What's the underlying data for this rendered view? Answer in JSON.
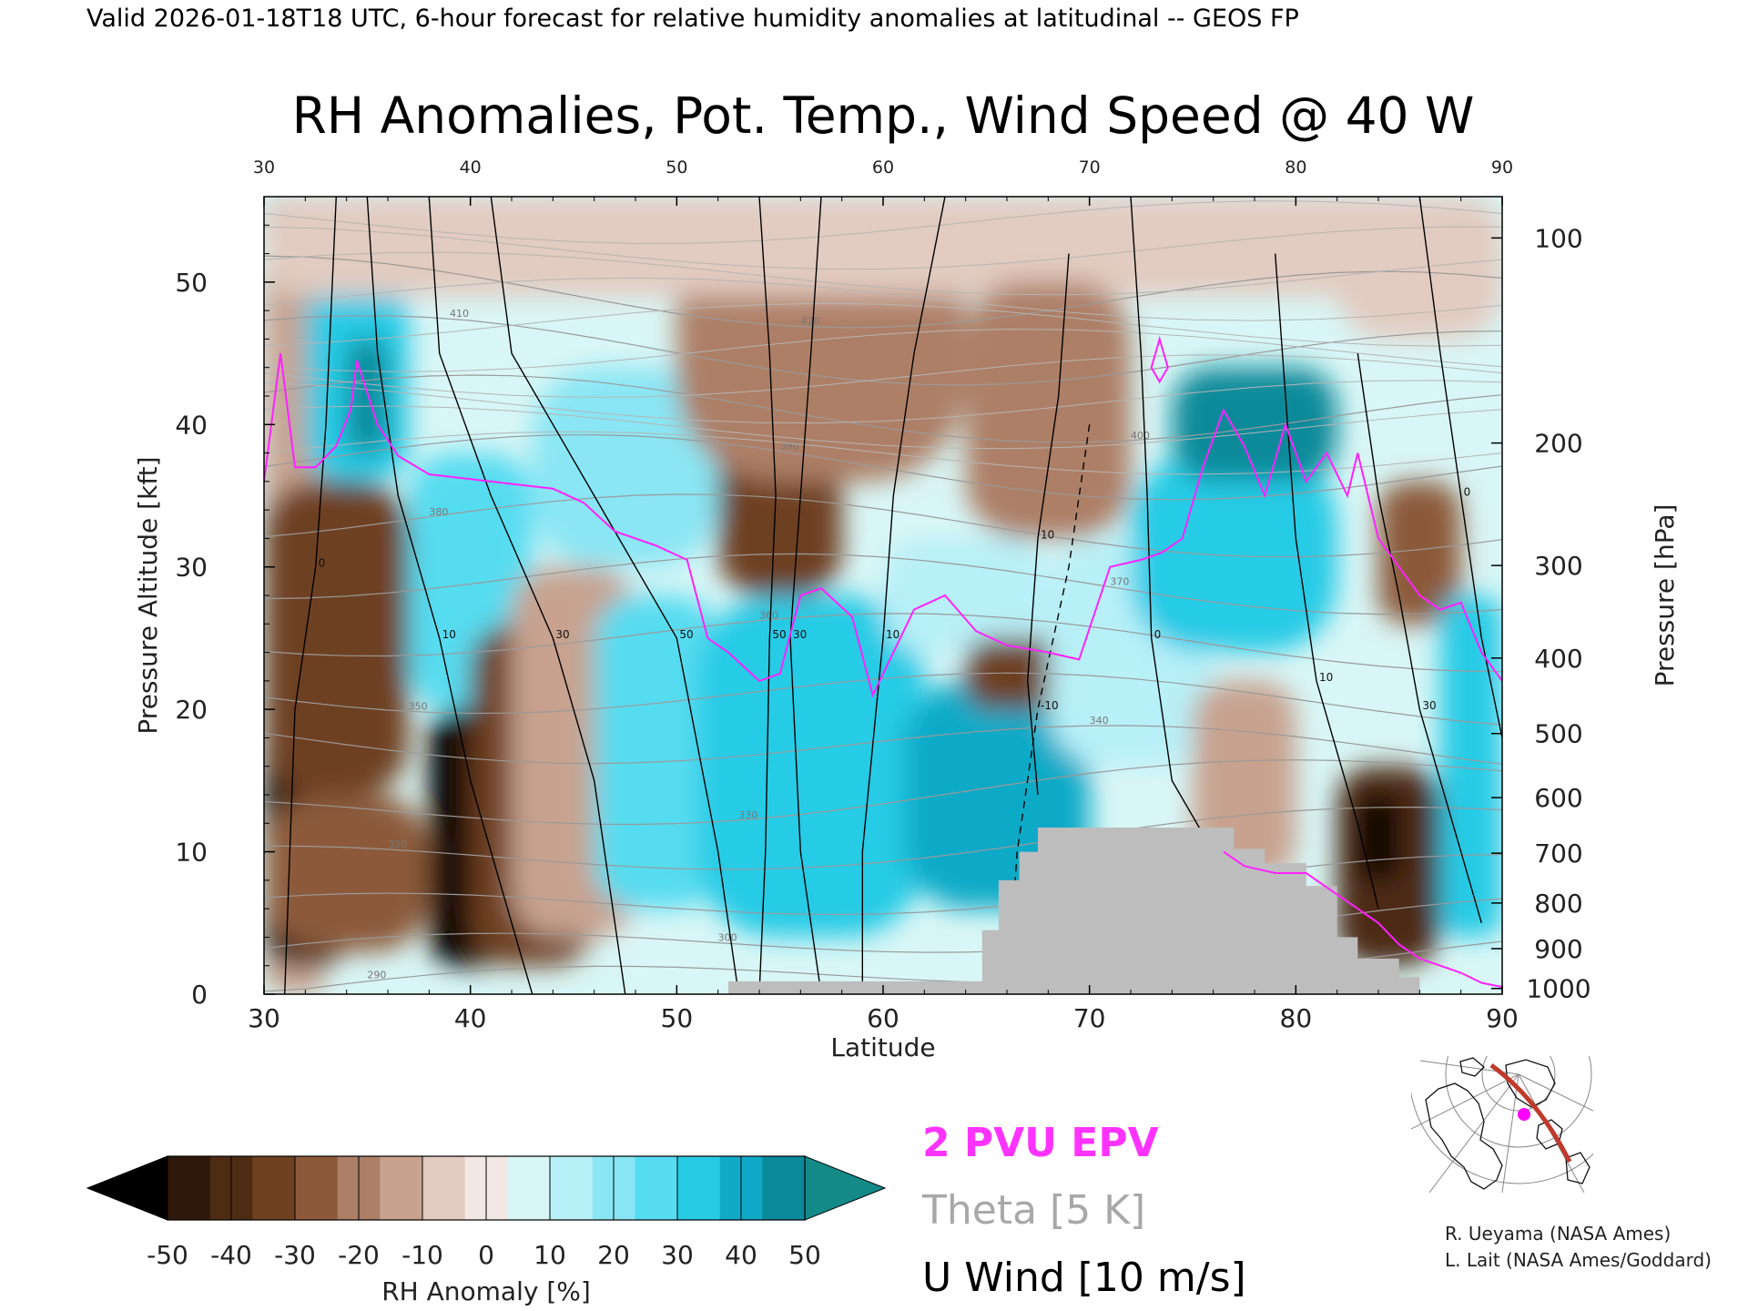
{
  "header": {
    "valid_line": "Valid 2026-01-18T18 UTC, 6-hour forecast for relative humidity anomalies at latitudinal -- GEOS FP"
  },
  "chart_data": {
    "type": "heatmap",
    "title": "RH Anomalies, Pot. Temp., Wind Speed @ 40 W",
    "xlabel": "Latitude",
    "ylabel": "Pressure Altitude [kft]",
    "ylabel_right": "Pressure [hPa]",
    "xlim": [
      30,
      90
    ],
    "ylim": [
      0,
      56
    ],
    "x_ticks": [
      "30",
      "40",
      "50",
      "60",
      "70",
      "80",
      "90"
    ],
    "y_ticks": [
      "0",
      "10",
      "20",
      "30",
      "40",
      "50"
    ],
    "pressure_ticks": [
      {
        "label": "100",
        "kft": 53.1
      },
      {
        "label": "200",
        "kft": 38.7
      },
      {
        "label": "300",
        "kft": 30.1
      },
      {
        "label": "400",
        "kft": 23.6
      },
      {
        "label": "500",
        "kft": 18.3
      },
      {
        "label": "600",
        "kft": 13.8
      },
      {
        "label": "700",
        "kft": 9.9
      },
      {
        "label": "800",
        "kft": 6.4
      },
      {
        "label": "900",
        "kft": 3.2
      },
      {
        "label": "1000",
        "kft": 0.4
      }
    ],
    "colorbar": {
      "label": "RH Anomaly [%]",
      "ticks": [
        "-50",
        "-40",
        "-30",
        "-20",
        "-10",
        "0",
        "10",
        "20",
        "30",
        "40",
        "50"
      ],
      "colors": [
        "#000000",
        "#2e180a",
        "#4e2c13",
        "#6e4020",
        "#8c5a3a",
        "#ad7f66",
        "#c8a28f",
        "#e2cbc0",
        "#f2e7e2",
        "#d8f6f6",
        "#b8f0f8",
        "#8ae6f4",
        "#56dcf0",
        "#28cbe6",
        "#10aac8",
        "#0a8a9a",
        "#138a88"
      ]
    },
    "anomaly_regions": [
      {
        "x": [
          30,
          33
        ],
        "y": [
          0,
          56
        ],
        "value": -12
      },
      {
        "x": [
          30,
          34
        ],
        "y": [
          2,
          20
        ],
        "value": -50
      },
      {
        "x": [
          30,
          37
        ],
        "y": [
          14,
          36
        ],
        "value": -35
      },
      {
        "x": [
          30,
          38
        ],
        "y": [
          3,
          14
        ],
        "value": -30
      },
      {
        "x": [
          32,
          37
        ],
        "y": [
          36,
          50
        ],
        "value": 30
      },
      {
        "x": [
          34,
          36
        ],
        "y": [
          38,
          46
        ],
        "value": 45
      },
      {
        "x": [
          37,
          43
        ],
        "y": [
          20,
          38
        ],
        "value": 25
      },
      {
        "x": [
          38,
          42
        ],
        "y": [
          2,
          20
        ],
        "value": -50
      },
      {
        "x": [
          40,
          46
        ],
        "y": [
          2,
          26
        ],
        "value": -35
      },
      {
        "x": [
          42,
          48
        ],
        "y": [
          4,
          30
        ],
        "value": -15
      },
      {
        "x": [
          43,
          52
        ],
        "y": [
          30,
          44
        ],
        "value": 20
      },
      {
        "x": [
          46,
          52
        ],
        "y": [
          6,
          28
        ],
        "value": 25
      },
      {
        "x": [
          51,
          62
        ],
        "y": [
          4,
          28
        ],
        "value": 35
      },
      {
        "x": [
          52,
          58
        ],
        "y": [
          28,
          42
        ],
        "value": -35
      },
      {
        "x": [
          50,
          64
        ],
        "y": [
          36,
          56
        ],
        "value": -18
      },
      {
        "x": [
          30,
          90
        ],
        "y": [
          49,
          56
        ],
        "value": -8
      },
      {
        "x": [
          60,
          68
        ],
        "y": [
          24,
          32
        ],
        "value": 15
      },
      {
        "x": [
          61,
          70
        ],
        "y": [
          6,
          22
        ],
        "value": 40
      },
      {
        "x": [
          64,
          69
        ],
        "y": [
          20,
          25
        ],
        "value": -35
      },
      {
        "x": [
          64,
          72
        ],
        "y": [
          32,
          50
        ],
        "value": -20
      },
      {
        "x": [
          68,
          76
        ],
        "y": [
          16,
          32
        ],
        "value": 15
      },
      {
        "x": [
          72,
          82
        ],
        "y": [
          24,
          38
        ],
        "value": 30
      },
      {
        "x": [
          74,
          82
        ],
        "y": [
          36,
          44
        ],
        "value": 45
      },
      {
        "x": [
          75,
          80
        ],
        "y": [
          8,
          22
        ],
        "value": -12
      },
      {
        "x": [
          82,
          87
        ],
        "y": [
          2,
          16
        ],
        "value": -40
      },
      {
        "x": [
          83,
          85
        ],
        "y": [
          8,
          14
        ],
        "value": -50
      },
      {
        "x": [
          84,
          88
        ],
        "y": [
          26,
          36
        ],
        "value": -30
      },
      {
        "x": [
          87,
          90
        ],
        "y": [
          4,
          28
        ],
        "value": 30
      },
      {
        "x": [
          82,
          90
        ],
        "y": [
          46,
          56
        ],
        "value": -6
      }
    ],
    "epv_2pvu": [
      [
        30,
        36
      ],
      [
        30.8,
        45
      ],
      [
        31.5,
        37
      ],
      [
        32.5,
        37
      ],
      [
        33.5,
        38.5
      ],
      [
        34.2,
        41
      ],
      [
        34.5,
        44.5
      ],
      [
        35.5,
        40
      ],
      [
        36.5,
        37.8
      ],
      [
        38,
        36.5
      ],
      [
        41,
        36
      ],
      [
        44,
        35.5
      ],
      [
        45.5,
        34.5
      ],
      [
        47,
        32.5
      ],
      [
        49,
        31.5
      ],
      [
        50.5,
        30.5
      ],
      [
        51.5,
        25
      ],
      [
        52.5,
        24
      ],
      [
        54,
        22
      ],
      [
        55,
        22.5
      ],
      [
        56,
        28
      ],
      [
        57,
        28.5
      ],
      [
        58.5,
        26.5
      ],
      [
        59.5,
        21
      ],
      [
        60.5,
        24
      ],
      [
        61.5,
        27
      ],
      [
        63,
        28
      ],
      [
        64.5,
        25.5
      ],
      [
        66,
        24.5
      ],
      [
        68,
        24
      ],
      [
        69.5,
        23.5
      ],
      [
        71,
        30
      ],
      [
        72.5,
        30.5
      ],
      [
        73.5,
        31
      ],
      [
        74.5,
        32
      ],
      [
        75.5,
        37
      ],
      [
        76.5,
        41
      ],
      [
        77.5,
        38.5
      ],
      [
        78.5,
        35
      ],
      [
        79.5,
        40
      ],
      [
        80.5,
        36
      ],
      [
        81.5,
        38
      ],
      [
        82.5,
        35
      ],
      [
        83,
        38
      ],
      [
        84,
        32
      ],
      [
        85,
        30
      ],
      [
        86,
        28
      ],
      [
        87,
        27
      ],
      [
        88,
        27.5
      ],
      [
        89,
        24
      ],
      [
        90,
        22
      ]
    ],
    "epv_surface": [
      [
        76.5,
        10
      ],
      [
        77.5,
        9
      ],
      [
        79,
        8.5
      ],
      [
        80.5,
        8.5
      ],
      [
        82,
        7
      ],
      [
        83,
        6
      ],
      [
        84,
        5
      ],
      [
        85,
        3.5
      ],
      [
        86,
        2.5
      ],
      [
        87,
        2
      ],
      [
        88,
        1.5
      ],
      [
        89,
        0.8
      ],
      [
        90,
        0.5
      ]
    ],
    "epv_spur": [
      [
        73,
        44
      ],
      [
        73.4,
        46
      ],
      [
        73.8,
        44
      ],
      [
        73.4,
        43
      ]
    ],
    "theta_levels": [
      "290",
      "300",
      "310",
      "320",
      "330",
      "340",
      "350",
      "360",
      "370",
      "380",
      "390",
      "400",
      "410",
      "420"
    ],
    "u_wind_contours": [
      {
        "label": "-10",
        "dashed": true,
        "points": [
          [
            70,
            40
          ],
          [
            69,
            30
          ],
          [
            67.5,
            20
          ],
          [
            66.5,
            10
          ],
          [
            66,
            0
          ]
        ]
      },
      {
        "label": "0",
        "dashed": false,
        "points": [
          [
            33.5,
            56
          ],
          [
            33,
            40
          ],
          [
            32.5,
            30
          ],
          [
            31.5,
            20
          ],
          [
            31,
            0
          ]
        ]
      },
      {
        "label": "10",
        "dashed": false,
        "points": [
          [
            35,
            56
          ],
          [
            35.5,
            45
          ],
          [
            36.5,
            35
          ],
          [
            38.5,
            25
          ],
          [
            40,
            15
          ],
          [
            42,
            5
          ],
          [
            43,
            0
          ]
        ]
      },
      {
        "label": "30",
        "dashed": false,
        "points": [
          [
            38,
            56
          ],
          [
            38.5,
            45
          ],
          [
            41,
            35
          ],
          [
            44,
            25
          ],
          [
            46,
            15
          ],
          [
            47.5,
            0
          ]
        ]
      },
      {
        "label": "50",
        "dashed": false,
        "points": [
          [
            41,
            56
          ],
          [
            42,
            45
          ],
          [
            46,
            35
          ],
          [
            50,
            25
          ],
          [
            52,
            10
          ],
          [
            53,
            0
          ]
        ]
      },
      {
        "label": "50",
        "dashed": false,
        "points": [
          [
            54,
            56
          ],
          [
            54.5,
            45
          ],
          [
            54.8,
            35
          ],
          [
            54.5,
            25
          ],
          [
            54.3,
            10
          ],
          [
            54,
            0
          ]
        ]
      },
      {
        "label": "30",
        "dashed": false,
        "points": [
          [
            57,
            56
          ],
          [
            56.5,
            45
          ],
          [
            56,
            35
          ],
          [
            55.5,
            25
          ],
          [
            56,
            10
          ],
          [
            57,
            0
          ]
        ]
      },
      {
        "label": "10",
        "dashed": false,
        "points": [
          [
            63,
            56
          ],
          [
            61.5,
            45
          ],
          [
            60.5,
            35
          ],
          [
            60,
            25
          ],
          [
            59,
            10
          ],
          [
            59,
            0
          ]
        ]
      },
      {
        "label": "10",
        "dashed": false,
        "points": [
          [
            69,
            52
          ],
          [
            68.5,
            42
          ],
          [
            67.5,
            32
          ],
          [
            67,
            22
          ],
          [
            67.5,
            14
          ]
        ]
      },
      {
        "label": "0",
        "dashed": false,
        "points": [
          [
            72,
            56
          ],
          [
            72.5,
            45
          ],
          [
            72.8,
            35
          ],
          [
            73,
            25
          ],
          [
            74,
            15
          ],
          [
            76,
            10
          ]
        ]
      },
      {
        "label": "10",
        "dashed": false,
        "points": [
          [
            79,
            52
          ],
          [
            79.5,
            42
          ],
          [
            80,
            32
          ],
          [
            81,
            22
          ],
          [
            83,
            12
          ],
          [
            84,
            6
          ]
        ]
      },
      {
        "label": "30",
        "dashed": false,
        "points": [
          [
            83,
            45
          ],
          [
            84,
            35
          ],
          [
            85,
            28
          ],
          [
            86,
            20
          ],
          [
            88,
            10
          ],
          [
            89,
            5
          ]
        ]
      },
      {
        "label": "0",
        "dashed": false,
        "points": [
          [
            86,
            56
          ],
          [
            87,
            45
          ],
          [
            88,
            35
          ],
          [
            89,
            25
          ],
          [
            90,
            18
          ]
        ]
      }
    ],
    "terrain": [
      [
        52.5,
        0.9
      ],
      [
        64.8,
        0.9
      ],
      [
        64.8,
        4.5
      ],
      [
        65.6,
        4.5
      ],
      [
        65.6,
        8
      ],
      [
        66.6,
        8
      ],
      [
        66.6,
        10
      ],
      [
        67.5,
        10
      ],
      [
        67.5,
        11.7
      ],
      [
        77,
        11.7
      ],
      [
        77,
        10.2
      ],
      [
        78.5,
        10.2
      ],
      [
        78.5,
        9.2
      ],
      [
        80.5,
        9.2
      ],
      [
        80.5,
        7.6
      ],
      [
        82,
        7.6
      ],
      [
        82,
        4
      ],
      [
        83,
        4
      ],
      [
        83,
        2.5
      ],
      [
        85,
        2.5
      ],
      [
        85,
        1.2
      ],
      [
        86,
        1.2
      ],
      [
        86,
        0
      ]
    ],
    "legend": {
      "epv": "2 PVU EPV",
      "theta": "Theta [5 K]",
      "u_wind": "U Wind [10 m/s]"
    }
  },
  "inset_map": {
    "section_color": "#c0392b",
    "marker_color": "#ff00ff"
  },
  "credits": {
    "line1": "R. Ueyama (NASA Ames)",
    "line2": "L. Lait (NASA Ames/Goddard)"
  }
}
